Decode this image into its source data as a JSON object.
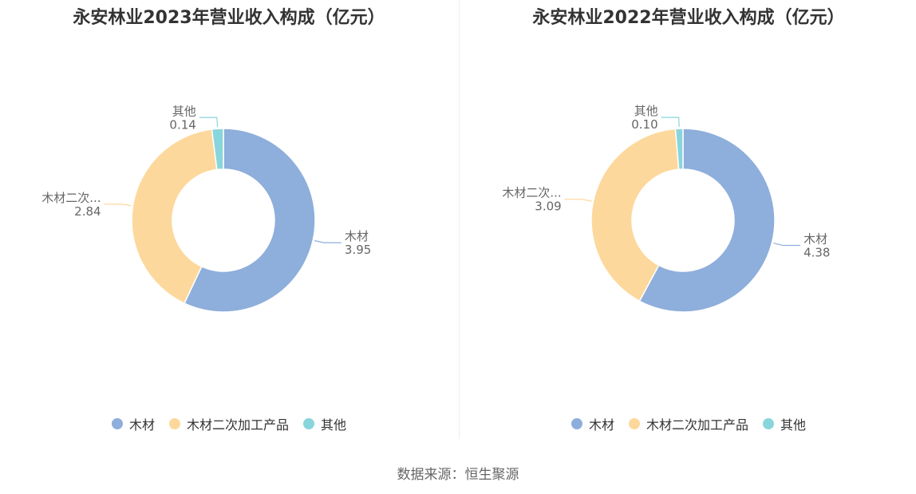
{
  "source": "数据来源：恒生聚源",
  "colors": [
    "#8eaedb",
    "#fdd89c",
    "#89d5dc"
  ],
  "chart_data": [
    {
      "type": "pie",
      "title": "永安林业2023年营业收入构成（亿元）",
      "slices": [
        {
          "name": "木材",
          "label": "木材",
          "value": 3.95,
          "value_label": "3.95"
        },
        {
          "name": "木材二次加工产品",
          "label": "木材二次...",
          "value": 2.84,
          "value_label": "2.84"
        },
        {
          "name": "其他",
          "label": "其他",
          "value": 0.14,
          "value_label": "0.14"
        }
      ],
      "legend": [
        "木材",
        "木材二次加工产品",
        "其他"
      ],
      "legend_position": "bottom"
    },
    {
      "type": "pie",
      "title": "永安林业2022年营业收入构成（亿元）",
      "slices": [
        {
          "name": "木材",
          "label": "木材",
          "value": 4.38,
          "value_label": "4.38"
        },
        {
          "name": "木材二次加工产品",
          "label": "木材二次...",
          "value": 3.09,
          "value_label": "3.09"
        },
        {
          "name": "其他",
          "label": "其他",
          "value": 0.1,
          "value_label": "0.10"
        }
      ],
      "legend": [
        "木材",
        "木材二次加工产品",
        "其他"
      ],
      "legend_position": "bottom"
    }
  ]
}
